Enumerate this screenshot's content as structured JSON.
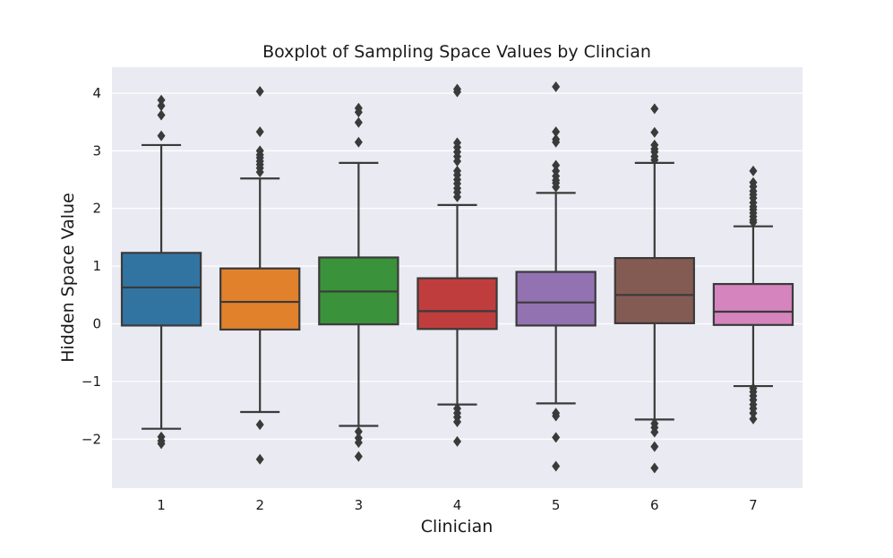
{
  "chart_data": {
    "type": "boxplot",
    "title": "Boxplot of Sampling Space Values by Clincian",
    "xlabel": "Clinician",
    "ylabel": "Hidden Space Value",
    "ylim": [
      -2.85,
      4.45
    ],
    "yticks": [
      4,
      3,
      2,
      1,
      0,
      -1,
      -2
    ],
    "ytick_labels": [
      "4",
      "3",
      "2",
      "1",
      "0",
      "−1",
      "−2"
    ],
    "grid": true,
    "background_color": "#eaeaf2",
    "grid_color": "#ffffff",
    "line_color": "#3a3a3a",
    "categories": [
      "1",
      "2",
      "3",
      "4",
      "5",
      "6",
      "7"
    ],
    "boxes": [
      {
        "category": "1",
        "color": "#3274a1",
        "whisker_low": -1.82,
        "q1": -0.03,
        "median": 0.63,
        "q3": 1.23,
        "whisker_high": 3.1,
        "outliers": [
          3.88,
          3.78,
          3.62,
          3.26,
          -1.96,
          -2.03,
          -2.08
        ]
      },
      {
        "category": "2",
        "color": "#e1812c",
        "whisker_low": -1.53,
        "q1": -0.1,
        "median": 0.38,
        "q3": 0.96,
        "whisker_high": 2.52,
        "outliers": [
          4.03,
          3.33,
          3.0,
          2.93,
          2.88,
          2.82,
          2.76,
          2.7,
          2.63,
          -1.75,
          -2.35
        ]
      },
      {
        "category": "3",
        "color": "#3a923a",
        "whisker_low": -1.77,
        "q1": -0.01,
        "median": 0.56,
        "q3": 1.15,
        "whisker_high": 2.79,
        "outliers": [
          3.74,
          3.67,
          3.49,
          3.15,
          -1.87,
          -1.98,
          -2.06,
          -2.3
        ]
      },
      {
        "category": "4",
        "color": "#c03d3e",
        "whisker_low": -1.4,
        "q1": -0.09,
        "median": 0.22,
        "q3": 0.79,
        "whisker_high": 2.06,
        "outliers": [
          4.07,
          4.02,
          3.14,
          3.06,
          2.98,
          2.9,
          2.82,
          2.65,
          2.58,
          2.5,
          2.43,
          2.35,
          2.28,
          2.2,
          -1.47,
          -1.55,
          -1.62,
          -1.7,
          -2.04
        ]
      },
      {
        "category": "5",
        "color": "#9372b2",
        "whisker_low": -1.38,
        "q1": -0.03,
        "median": 0.37,
        "q3": 0.9,
        "whisker_high": 2.27,
        "outliers": [
          4.11,
          3.33,
          3.2,
          3.15,
          2.75,
          2.65,
          2.56,
          2.49,
          2.44,
          2.37,
          -1.55,
          -1.6,
          -1.97,
          -2.47
        ]
      },
      {
        "category": "6",
        "color": "#845b53",
        "whisker_low": -1.66,
        "q1": 0.01,
        "median": 0.5,
        "q3": 1.14,
        "whisker_high": 2.79,
        "outliers": [
          3.73,
          3.32,
          3.1,
          3.03,
          2.98,
          2.9,
          2.84,
          -1.73,
          -1.8,
          -1.88,
          -2.13,
          -2.5
        ]
      },
      {
        "category": "7",
        "color": "#d684bd",
        "whisker_low": -1.08,
        "q1": -0.02,
        "median": 0.21,
        "q3": 0.69,
        "whisker_high": 1.69,
        "outliers": [
          2.65,
          2.45,
          2.38,
          2.3,
          2.24,
          2.18,
          2.1,
          2.03,
          1.98,
          1.92,
          1.86,
          1.8,
          1.76,
          -1.12,
          -1.18,
          -1.25,
          -1.32,
          -1.4,
          -1.47,
          -1.55,
          -1.65
        ]
      }
    ]
  }
}
